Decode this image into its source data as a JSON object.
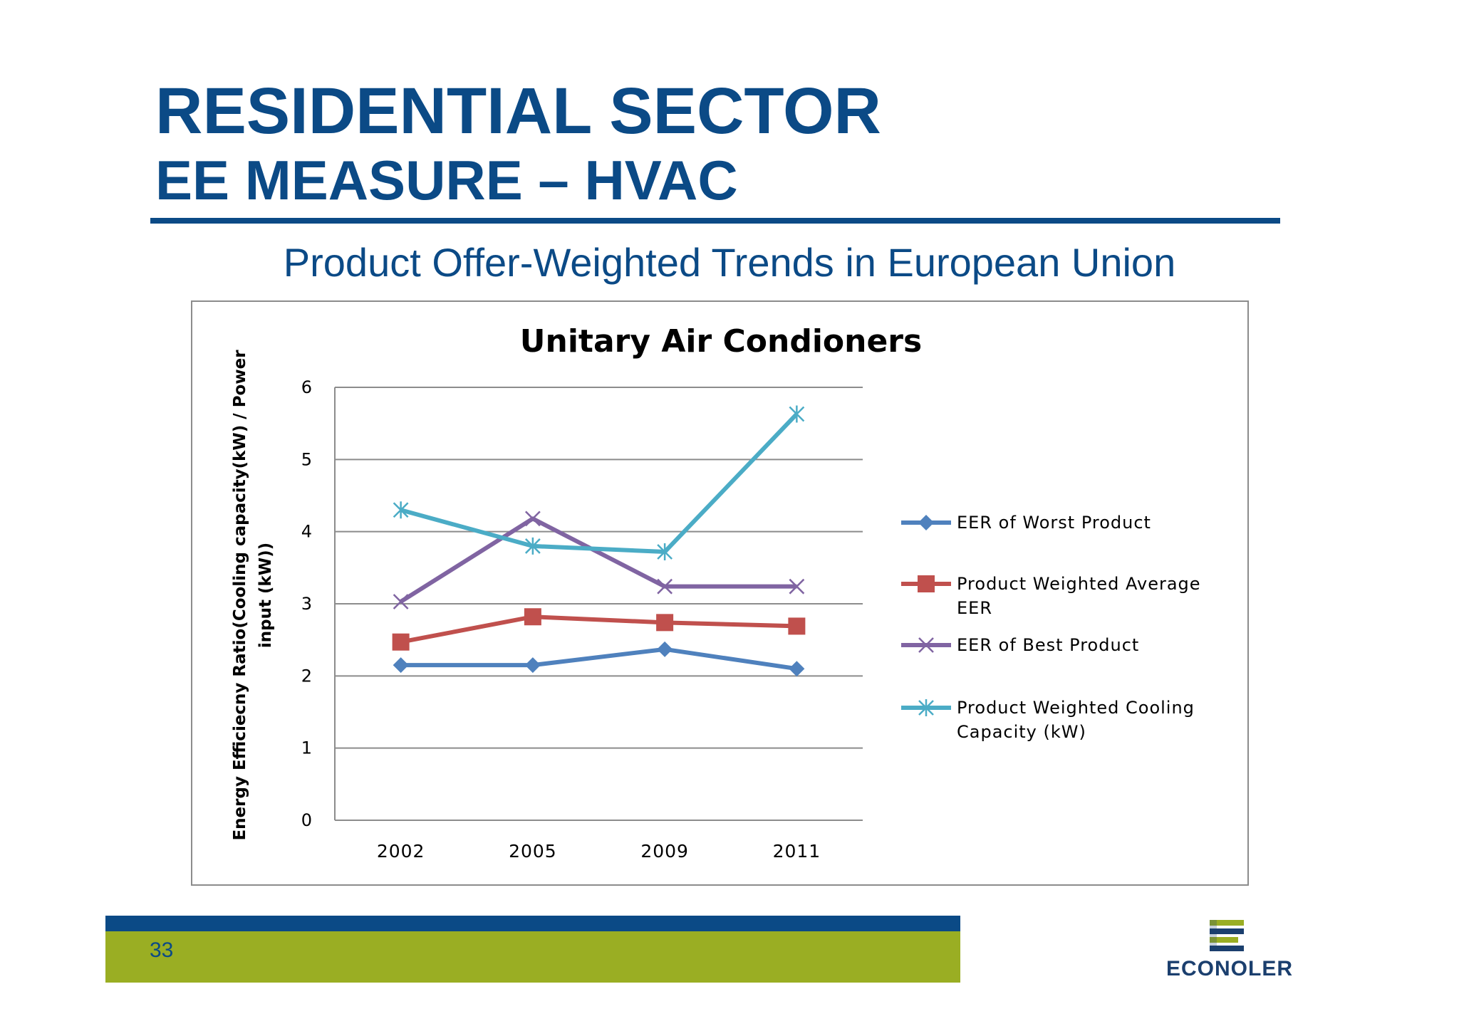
{
  "slide": {
    "title_line1": "RESIDENTIAL SECTOR",
    "title_line2": "EE MEASURE – HVAC",
    "subtitle": "Product Offer-Weighted Trends in European Union",
    "page_number": "33",
    "logo_text": "ECONOLER"
  },
  "colors": {
    "brand_blue": "#0b4a86",
    "brand_green": "#9aae23"
  },
  "chart_data": {
    "type": "line",
    "title": "Unitary Air Condioners",
    "ylabel_line1": "Energy Efficiecny  Ratio(Cooling capacity(kW)  / Power",
    "ylabel_line2": "input (kW))",
    "xlabel": "",
    "categories": [
      "2002",
      "2005",
      "2009",
      "2011"
    ],
    "ylim": [
      0,
      6
    ],
    "yticks": [
      0,
      1,
      2,
      3,
      4,
      5,
      6
    ],
    "grid": "horizontal",
    "legend_position": "right",
    "series": [
      {
        "name": "EER of Worst Product",
        "color": "#4f81bd",
        "marker": "diamond",
        "values": [
          2.15,
          2.15,
          2.37,
          2.1
        ]
      },
      {
        "name": "Product Weighted Average EER",
        "color": "#c0504d",
        "marker": "square",
        "values": [
          2.47,
          2.82,
          2.74,
          2.69
        ]
      },
      {
        "name": "EER of Best Product",
        "color": "#8064a2",
        "marker": "x",
        "values": [
          3.03,
          4.18,
          3.24,
          3.24
        ]
      },
      {
        "name": "Product Weighted Cooling Capacity (kW)",
        "color": "#4bacc6",
        "marker": "star",
        "values": [
          4.3,
          3.8,
          3.72,
          5.63
        ]
      }
    ],
    "legend_lines": [
      [
        "EER of Worst Product"
      ],
      [
        "Product Weighted Average",
        "EER"
      ],
      [
        "EER of Best Product"
      ],
      [
        "Product Weighted Cooling",
        "Capacity (kW)"
      ]
    ]
  }
}
